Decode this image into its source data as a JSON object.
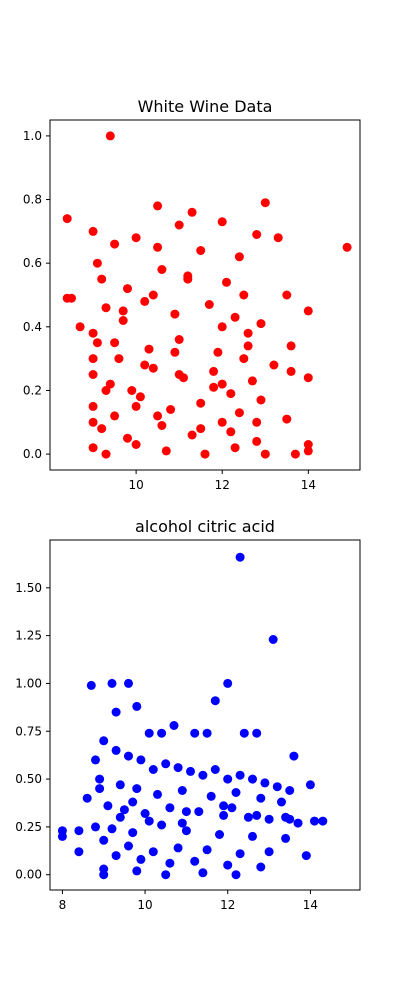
{
  "chart_data": [
    {
      "type": "scatter",
      "title": "White Wine Data",
      "xlabel": "",
      "ylabel": "",
      "xlim": [
        8.0,
        15.2
      ],
      "ylim": [
        -0.05,
        1.05
      ],
      "xticks": [
        10,
        12,
        14
      ],
      "yticks": [
        0.0,
        0.2,
        0.4,
        0.6,
        0.8,
        1.0
      ],
      "xtick_labels": [
        "10",
        "12",
        "14"
      ],
      "ytick_labels": [
        "0.0",
        "0.2",
        "0.4",
        "0.6",
        "0.8",
        "1.0"
      ],
      "grid": false,
      "legend": "none",
      "color": "#ff0000",
      "series": [
        {
          "x": [
            8.4,
            9.4,
            10.5,
            11.3,
            12.0,
            13.0,
            14.9,
            8.5,
            9.0,
            10.0,
            11.0,
            12.8,
            13.3,
            9.5,
            10.5,
            11.5,
            12.4,
            13.5,
            14.0,
            8.4,
            8.7,
            9.2,
            9.8,
            10.6,
            11.2,
            12.1,
            12.5,
            13.6,
            14.0,
            9.0,
            9.3,
            9.7,
            10.2,
            10.9,
            11.7,
            12.3,
            12.9,
            13.6,
            14.0,
            9.1,
            9.6,
            10.3,
            11.0,
            11.9,
            12.6,
            13.2,
            9.0,
            9.4,
            9.9,
            10.4,
            11.1,
            11.8,
            12.2,
            12.7,
            13.5,
            14.0,
            9.0,
            9.5,
            10.1,
            10.8,
            11.5,
            12.0,
            12.4,
            12.9,
            13.7,
            9.2,
            9.8,
            10.6,
            11.3,
            12.2,
            12.8,
            9.0,
            9.3,
            10.0,
            10.7,
            11.6,
            12.3,
            13.0,
            9.1,
            9.7,
            10.4,
            11.2,
            12.0,
            12.6,
            9.0,
            9.5,
            10.2,
            10.9,
            11.8,
            12.5,
            9.3,
            10.0,
            11.0,
            12.0,
            9.0,
            10.5,
            11.5,
            12.8
          ],
          "y": [
            0.74,
            1.0,
            0.78,
            0.76,
            0.73,
            0.79,
            0.65,
            0.49,
            0.7,
            0.68,
            0.72,
            0.69,
            0.68,
            0.66,
            0.65,
            0.64,
            0.62,
            0.5,
            0.45,
            0.49,
            0.4,
            0.55,
            0.52,
            0.58,
            0.56,
            0.54,
            0.5,
            0.34,
            0.24,
            0.38,
            0.46,
            0.42,
            0.48,
            0.44,
            0.47,
            0.43,
            0.41,
            0.26,
            0.03,
            0.35,
            0.3,
            0.33,
            0.36,
            0.32,
            0.34,
            0.28,
            0.25,
            0.22,
            0.2,
            0.27,
            0.24,
            0.21,
            0.19,
            0.23,
            0.11,
            0.01,
            0.15,
            0.12,
            0.18,
            0.14,
            0.16,
            0.1,
            0.13,
            0.17,
            0.0,
            0.08,
            0.05,
            0.09,
            0.06,
            0.07,
            0.04,
            0.02,
            0.0,
            0.03,
            0.01,
            0.0,
            0.02,
            0.0,
            0.6,
            0.45,
            0.5,
            0.55,
            0.4,
            0.38,
            0.3,
            0.35,
            0.28,
            0.32,
            0.26,
            0.3,
            0.2,
            0.15,
            0.25,
            0.22,
            0.1,
            0.12,
            0.08,
            0.1
          ]
        }
      ]
    },
    {
      "type": "scatter",
      "title": "alcohol citric acid",
      "xlabel": "",
      "ylabel": "",
      "xlim": [
        7.7,
        15.2
      ],
      "ylim": [
        -0.08,
        1.75
      ],
      "xticks": [
        8,
        10,
        12,
        14
      ],
      "yticks": [
        0.0,
        0.25,
        0.5,
        0.75,
        1.0,
        1.25,
        1.5
      ],
      "xtick_labels": [
        "8",
        "10",
        "12",
        "14"
      ],
      "ytick_labels": [
        "0.00",
        "0.25",
        "0.50",
        "0.75",
        "1.00",
        "1.25",
        "1.50"
      ],
      "grid": false,
      "legend": "none",
      "color": "#0000ff",
      "series": [
        {
          "x": [
            8.0,
            8.0,
            8.4,
            8.4,
            8.6,
            8.7,
            8.8,
            9.0,
            9.2,
            9.6,
            9.3,
            9.8,
            12.3,
            13.1,
            11.7,
            12.0,
            14.0,
            14.1,
            13.6,
            12.4,
            10.4,
            10.7,
            10.1,
            11.2,
            11.5,
            12.7,
            13.4,
            13.9,
            14.3,
            9.0,
            9.3,
            9.6,
            9.9,
            10.2,
            10.5,
            10.8,
            11.1,
            11.4,
            11.7,
            12.0,
            12.3,
            12.6,
            12.9,
            13.2,
            13.5,
            8.9,
            9.4,
            9.8,
            10.3,
            10.9,
            11.6,
            12.2,
            12.8,
            13.3,
            9.1,
            9.5,
            10.0,
            10.6,
            11.3,
            11.9,
            12.5,
            13.0,
            13.7,
            8.8,
            9.2,
            9.7,
            10.4,
            11.0,
            11.8,
            12.6,
            13.4,
            9.0,
            9.6,
            10.2,
            10.8,
            11.5,
            12.3,
            13.0,
            9.3,
            9.9,
            10.6,
            11.2,
            12.0,
            12.8,
            9.0,
            9.8,
            10.5,
            11.4,
            12.2,
            9.4,
            10.1,
            11.0,
            11.9,
            12.7,
            13.5,
            8.9,
            9.7,
            10.9,
            12.1
          ],
          "y": [
            0.2,
            0.23,
            0.12,
            0.23,
            0.4,
            0.99,
            0.6,
            0.0,
            1.0,
            1.0,
            0.85,
            0.88,
            1.66,
            1.23,
            0.91,
            1.0,
            0.47,
            0.28,
            0.62,
            0.74,
            0.74,
            0.78,
            0.74,
            0.74,
            0.74,
            0.74,
            0.3,
            0.1,
            0.28,
            0.7,
            0.65,
            0.62,
            0.6,
            0.55,
            0.58,
            0.56,
            0.54,
            0.52,
            0.55,
            0.5,
            0.52,
            0.5,
            0.48,
            0.46,
            0.44,
            0.5,
            0.47,
            0.45,
            0.42,
            0.44,
            0.41,
            0.43,
            0.4,
            0.38,
            0.36,
            0.34,
            0.32,
            0.35,
            0.33,
            0.31,
            0.3,
            0.29,
            0.27,
            0.25,
            0.24,
            0.22,
            0.26,
            0.23,
            0.21,
            0.2,
            0.19,
            0.18,
            0.15,
            0.12,
            0.14,
            0.13,
            0.11,
            0.12,
            0.1,
            0.08,
            0.06,
            0.07,
            0.05,
            0.04,
            0.03,
            0.02,
            0.0,
            0.01,
            0.0,
            0.3,
            0.28,
            0.33,
            0.36,
            0.31,
            0.29,
            0.45,
            0.38,
            0.27,
            0.35
          ]
        }
      ]
    }
  ]
}
